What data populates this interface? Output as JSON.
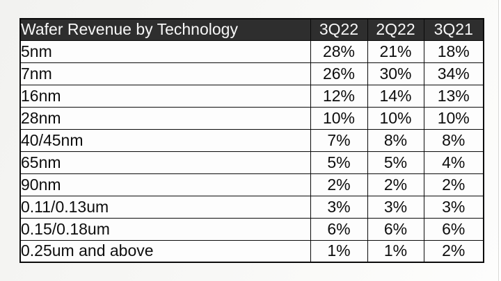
{
  "colors": {
    "header_bg": "#2e2e2e",
    "header_text": "#f7f7f7",
    "cell_bg": "#fdfdfd",
    "border": "#0a0a0a"
  },
  "table": {
    "header_label": "Wafer Revenue by Technology",
    "quarter_columns": [
      "3Q22",
      "2Q22",
      "3Q21"
    ],
    "rows": [
      {
        "technology": "5nm",
        "values": [
          "28%",
          "21%",
          "18%"
        ]
      },
      {
        "technology": "7nm",
        "values": [
          "26%",
          "30%",
          "34%"
        ]
      },
      {
        "technology": "16nm",
        "values": [
          "12%",
          "14%",
          "13%"
        ]
      },
      {
        "technology": "28nm",
        "values": [
          "10%",
          "10%",
          "10%"
        ]
      },
      {
        "technology": "40/45nm",
        "values": [
          "7%",
          "8%",
          "8%"
        ]
      },
      {
        "technology": "65nm",
        "values": [
          "5%",
          "5%",
          "4%"
        ]
      },
      {
        "technology": "90nm",
        "values": [
          "2%",
          "2%",
          "2%"
        ]
      },
      {
        "technology": "0.11/0.13um",
        "values": [
          "3%",
          "3%",
          "3%"
        ]
      },
      {
        "technology": "0.15/0.18um",
        "values": [
          "6%",
          "6%",
          "6%"
        ]
      },
      {
        "technology": "0.25um and above",
        "values": [
          "1%",
          "1%",
          "2%"
        ]
      }
    ]
  },
  "chart_data": {
    "type": "table",
    "title": "Wafer Revenue by Technology",
    "columns": [
      "Technology",
      "3Q22",
      "2Q22",
      "3Q21"
    ],
    "rows": [
      [
        "5nm",
        "28%",
        "21%",
        "18%"
      ],
      [
        "7nm",
        "26%",
        "30%",
        "34%"
      ],
      [
        "16nm",
        "12%",
        "14%",
        "13%"
      ],
      [
        "28nm",
        "10%",
        "10%",
        "10%"
      ],
      [
        "40/45nm",
        "7%",
        "8%",
        "8%"
      ],
      [
        "65nm",
        "5%",
        "5%",
        "4%"
      ],
      [
        "90nm",
        "2%",
        "2%",
        "2%"
      ],
      [
        "0.11/0.13um",
        "3%",
        "3%",
        "3%"
      ],
      [
        "0.15/0.18um",
        "6%",
        "6%",
        "6%"
      ],
      [
        "0.25um and above",
        "1%",
        "1%",
        "2%"
      ]
    ]
  }
}
